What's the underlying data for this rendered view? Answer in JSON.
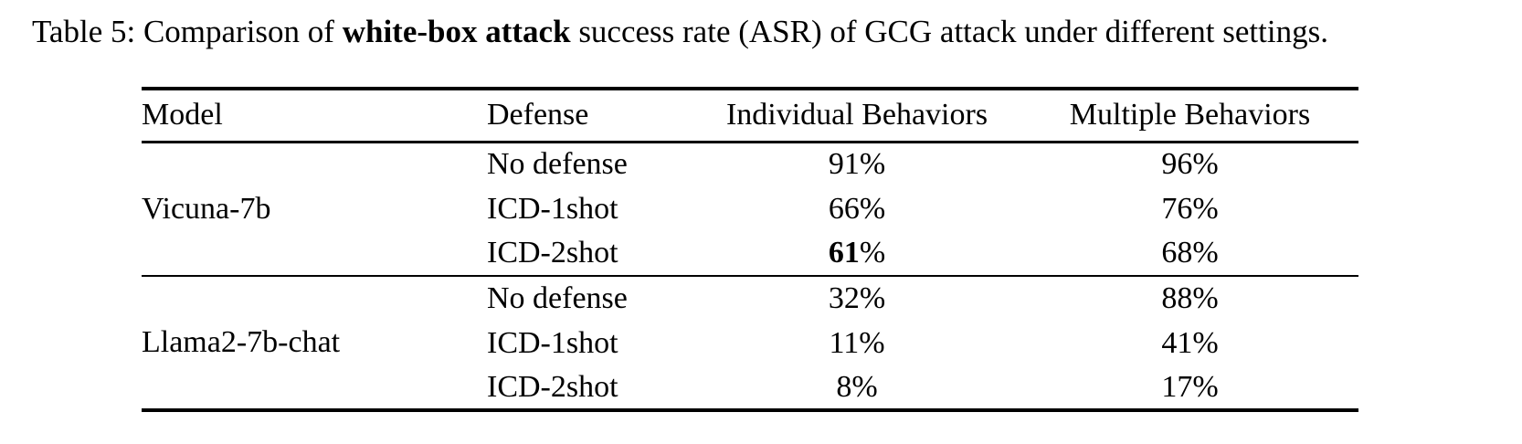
{
  "caption": {
    "prefix": "Table 5: Comparison of ",
    "bold": "white-box attack",
    "suffix": " success rate (ASR) of GCG attack under different settings."
  },
  "table": {
    "headers": {
      "model": "Model",
      "defense": "Defense",
      "individual": "Individual Behaviors",
      "multiple": "Multiple Behaviors"
    },
    "groups": [
      {
        "model": "Vicuna-7b",
        "rows": [
          {
            "defense": "No defense",
            "individual": "91%",
            "multiple": "96%"
          },
          {
            "defense": "ICD-1shot",
            "individual": "66%",
            "multiple": "76%"
          },
          {
            "defense": "ICD-2shot",
            "individual_num": "61",
            "individual_pct": "%",
            "multiple": "68%"
          }
        ]
      },
      {
        "model": "Llama2-7b-chat",
        "rows": [
          {
            "defense": "No defense",
            "individual": "32%",
            "multiple": "88%"
          },
          {
            "defense": "ICD-1shot",
            "individual": "11%",
            "multiple": "41%"
          },
          {
            "defense": "ICD-2shot",
            "individual": "8%",
            "multiple": "17%"
          }
        ]
      }
    ]
  }
}
